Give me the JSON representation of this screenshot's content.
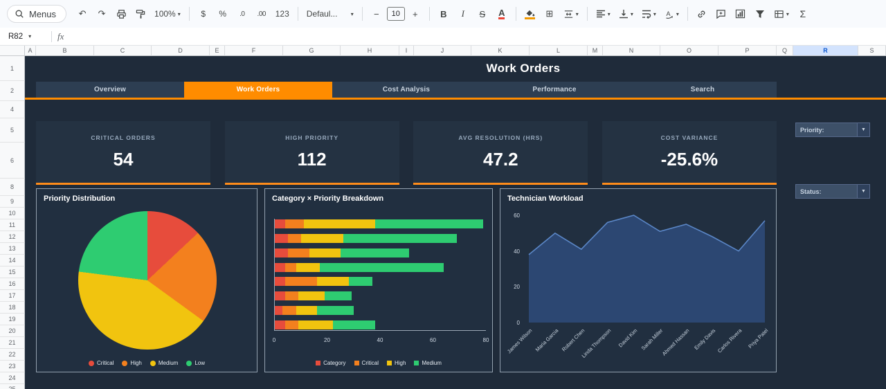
{
  "toolbar": {
    "menus": "Menus",
    "zoom": "100%",
    "currency": "$",
    "percent": "%",
    "dec_dec": ".0",
    "dec_inc": ".00",
    "more_formats": "123",
    "font": "Defaul...",
    "font_size_minus": "−",
    "font_size": "10",
    "font_size_plus": "+",
    "bold": "B",
    "italic": "I",
    "strike": "S",
    "text_color": "A",
    "functions": "Σ"
  },
  "formula_bar": {
    "cell_ref": "R82",
    "fx_label": "fx"
  },
  "grid": {
    "selected_column": "R",
    "columns": [
      {
        "label": "A",
        "w": 16
      },
      {
        "label": "B",
        "w": 84
      },
      {
        "label": "C",
        "w": 83
      },
      {
        "label": "D",
        "w": 84
      },
      {
        "label": "E",
        "w": 22
      },
      {
        "label": "F",
        "w": 84
      },
      {
        "label": "G",
        "w": 83
      },
      {
        "label": "H",
        "w": 85
      },
      {
        "label": "I",
        "w": 21
      },
      {
        "label": "J",
        "w": 83
      },
      {
        "label": "K",
        "w": 84
      },
      {
        "label": "L",
        "w": 84
      },
      {
        "label": "M",
        "w": 22
      },
      {
        "label": "N",
        "w": 83
      },
      {
        "label": "O",
        "w": 84
      },
      {
        "label": "P",
        "w": 84
      },
      {
        "label": "Q",
        "w": 24
      },
      {
        "label": "R",
        "w": 94
      },
      {
        "label": "S",
        "w": 40
      }
    ],
    "rows": [
      {
        "n": "1",
        "h": 36
      },
      {
        "n": "2",
        "h": 29
      },
      {
        "n": "4",
        "h": 25
      },
      {
        "n": "5",
        "h": 35
      },
      {
        "n": "6",
        "h": 52
      },
      {
        "n": "8",
        "h": 25
      },
      {
        "n": "9",
        "h": 17
      },
      {
        "n": "10",
        "h": 17
      },
      {
        "n": "11",
        "h": 17
      },
      {
        "n": "12",
        "h": 17
      },
      {
        "n": "13",
        "h": 17
      },
      {
        "n": "14",
        "h": 17
      },
      {
        "n": "15",
        "h": 17
      },
      {
        "n": "16",
        "h": 17
      },
      {
        "n": "17",
        "h": 17
      },
      {
        "n": "18",
        "h": 17
      },
      {
        "n": "19",
        "h": 17
      },
      {
        "n": "20",
        "h": 17
      },
      {
        "n": "21",
        "h": 17
      },
      {
        "n": "22",
        "h": 17
      },
      {
        "n": "23",
        "h": 17
      },
      {
        "n": "24",
        "h": 17
      },
      {
        "n": "25",
        "h": 14
      }
    ]
  },
  "dashboard": {
    "title": "Work Orders",
    "tabs": [
      {
        "label": "Overview",
        "active": false
      },
      {
        "label": "Work Orders",
        "active": true
      },
      {
        "label": "Cost Analysis",
        "active": false
      },
      {
        "label": "Performance",
        "active": false
      },
      {
        "label": "Search",
        "active": false
      }
    ],
    "kpis": [
      {
        "label": "CRITICAL ORDERS",
        "value": "54"
      },
      {
        "label": "HIGH PRIORITY",
        "value": "112"
      },
      {
        "label": "AVG RESOLUTION (HRS)",
        "value": "47.2"
      },
      {
        "label": "COST VARIANCE",
        "value": "-25.6%"
      }
    ],
    "filters": [
      {
        "label": "Priority:"
      },
      {
        "label": "Status:"
      }
    ],
    "colors": {
      "accent": "#ff8c00",
      "background": "#1f2b3a",
      "panel": "#212f40",
      "card": "#243242",
      "tabbar": "#2d3e52"
    }
  },
  "chart_data": [
    {
      "type": "pie",
      "title": "Priority Distribution",
      "labels": [
        "Critical",
        "High",
        "Medium",
        "Low"
      ],
      "values": [
        13,
        22,
        42,
        23
      ],
      "colors": [
        "#e74c3c",
        "#f3801e",
        "#f1c40f",
        "#2ecc71"
      ],
      "legend_position": "bottom"
    },
    {
      "type": "bar",
      "title": "Category × Priority Breakdown",
      "orientation": "horizontal",
      "stacked": true,
      "legend": [
        "Category",
        "Critical",
        "High",
        "Medium"
      ],
      "colors": [
        "#e74c3c",
        "#f3801e",
        "#f1c40f",
        "#2ecc71"
      ],
      "xlim": [
        0,
        80
      ],
      "xticks": [
        0,
        20,
        40,
        60,
        80
      ],
      "bars": [
        [
          4,
          7,
          27,
          41
        ],
        [
          5,
          5,
          16,
          43
        ],
        [
          5,
          8,
          12,
          26
        ],
        [
          4,
          4,
          9,
          47
        ],
        [
          4,
          12,
          12,
          9
        ],
        [
          4,
          5,
          10,
          10
        ],
        [
          3,
          5,
          8,
          14
        ],
        [
          4,
          5,
          13,
          16
        ]
      ]
    },
    {
      "type": "area",
      "title": "Technician Workload",
      "categories": [
        "James Wilson",
        "Maria Garcia",
        "Robert Chen",
        "Linda Thompson",
        "David Kim",
        "Sarah Miller",
        "Ahmed Hassan",
        "Emily Davis",
        "Carlos Rivera",
        "Priya Patel"
      ],
      "values": [
        38,
        50,
        41,
        56,
        60,
        51,
        55,
        48,
        40,
        57
      ],
      "ylim": [
        0,
        60
      ],
      "yticks": [
        0,
        20,
        40,
        60
      ],
      "fill": "#2e4a78",
      "line": "#5b87c7"
    }
  ]
}
